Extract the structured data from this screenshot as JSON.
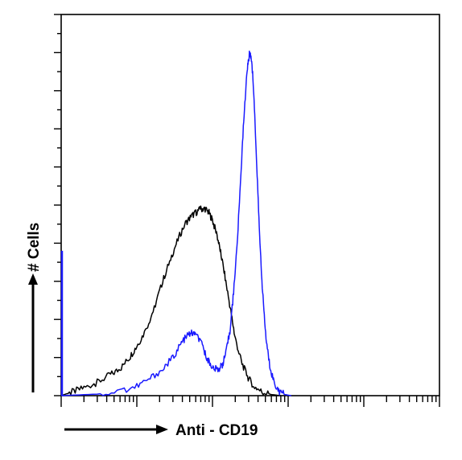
{
  "chart_data": {
    "type": "line",
    "title": "",
    "xlabel": "Anti - CD19",
    "ylabel": "# Cells",
    "x_scale": "log",
    "xlim": [
      1,
      100000
    ],
    "ylim": [
      0,
      1
    ],
    "grid": false,
    "legend": "none",
    "colors": {
      "axis": "#000000",
      "control": "#000000",
      "stained": "#1a1aff"
    },
    "series": [
      {
        "color": "#000000",
        "points": [
          [
            1.0,
            0.0
          ],
          [
            1.4,
            0.01
          ],
          [
            2.0,
            0.02
          ],
          [
            3.0,
            0.035
          ],
          [
            4.5,
            0.055
          ],
          [
            6.0,
            0.07
          ],
          [
            8.0,
            0.1
          ],
          [
            10.0,
            0.13
          ],
          [
            13.0,
            0.17
          ],
          [
            17.0,
            0.23
          ],
          [
            22.0,
            0.3
          ],
          [
            28.0,
            0.36
          ],
          [
            35.0,
            0.41
          ],
          [
            43.0,
            0.45
          ],
          [
            52.0,
            0.47
          ],
          [
            60.0,
            0.48
          ],
          [
            70.0,
            0.49
          ],
          [
            80.0,
            0.49
          ],
          [
            90.0,
            0.48
          ],
          [
            100.0,
            0.46
          ],
          [
            115.0,
            0.42
          ],
          [
            130.0,
            0.37
          ],
          [
            150.0,
            0.3
          ],
          [
            175.0,
            0.22
          ],
          [
            200.0,
            0.15
          ],
          [
            240.0,
            0.09
          ],
          [
            290.0,
            0.05
          ],
          [
            350.0,
            0.025
          ],
          [
            450.0,
            0.01
          ],
          [
            600.0,
            0.003
          ],
          [
            800.0,
            0.0
          ]
        ]
      },
      {
        "color": "#1a1aff",
        "points": [
          [
            1.0,
            0.0
          ],
          [
            3.0,
            0.004
          ],
          [
            6.0,
            0.012
          ],
          [
            10.0,
            0.025
          ],
          [
            15.0,
            0.045
          ],
          [
            22.0,
            0.07
          ],
          [
            30.0,
            0.1
          ],
          [
            38.0,
            0.135
          ],
          [
            45.0,
            0.155
          ],
          [
            52.0,
            0.165
          ],
          [
            60.0,
            0.16
          ],
          [
            70.0,
            0.14
          ],
          [
            80.0,
            0.11
          ],
          [
            92.0,
            0.085
          ],
          [
            105.0,
            0.07
          ],
          [
            120.0,
            0.07
          ],
          [
            135.0,
            0.08
          ],
          [
            150.0,
            0.11
          ],
          [
            170.0,
            0.17
          ],
          [
            190.0,
            0.27
          ],
          [
            215.0,
            0.42
          ],
          [
            240.0,
            0.6
          ],
          [
            265.0,
            0.76
          ],
          [
            290.0,
            0.86
          ],
          [
            310.0,
            0.9
          ],
          [
            330.0,
            0.88
          ],
          [
            355.0,
            0.78
          ],
          [
            385.0,
            0.6
          ],
          [
            420.0,
            0.42
          ],
          [
            460.0,
            0.27
          ],
          [
            510.0,
            0.15
          ],
          [
            570.0,
            0.08
          ],
          [
            650.0,
            0.035
          ],
          [
            750.0,
            0.012
          ],
          [
            900.0,
            0.003
          ],
          [
            1100.0,
            0.0
          ]
        ]
      }
    ]
  }
}
